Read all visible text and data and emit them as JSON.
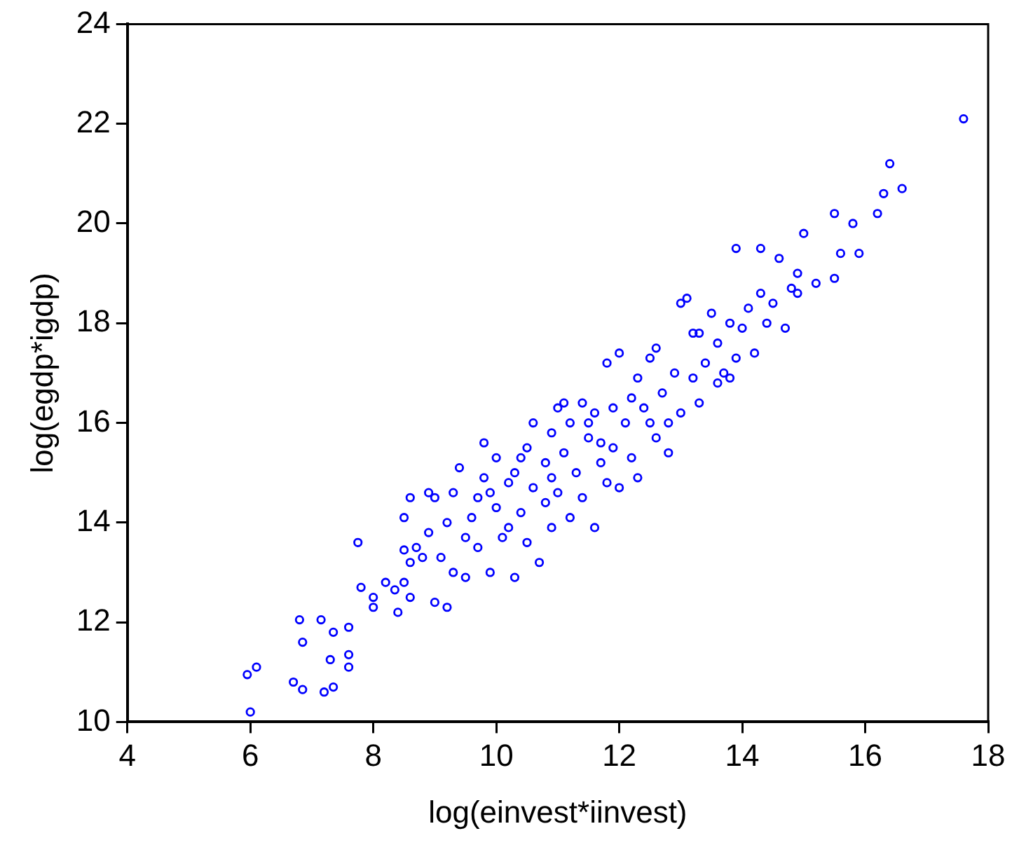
{
  "chart_data": {
    "type": "scatter",
    "xlabel": "log(einvest*iinvest)",
    "ylabel": "log(egdp*igdp)",
    "marker": "circle",
    "grid": false,
    "legend": false,
    "xlim": [
      4,
      18
    ],
    "xticks": [
      4,
      6,
      8,
      10,
      12,
      14,
      16,
      18
    ],
    "ylim": [
      10,
      24
    ],
    "yticks": [
      10,
      12,
      14,
      16,
      18,
      20,
      22,
      24
    ],
    "series": [
      {
        "color": "#0000ff",
        "x": [
          6.0,
          5.95,
          6.1,
          6.7,
          6.85,
          6.8,
          6.85,
          7.15,
          7.2,
          7.3,
          7.35,
          7.35,
          7.6,
          7.6,
          7.6,
          7.8,
          7.75,
          8.0,
          8.0,
          8.4,
          8.35,
          8.5,
          8.5,
          8.6,
          8.6,
          8.5,
          8.6,
          8.7,
          8.8,
          8.9,
          9.0,
          9.0,
          9.1,
          9.2,
          9.2,
          9.3,
          9.3,
          9.4,
          9.5,
          9.5,
          9.6,
          9.7,
          9.8,
          9.8,
          9.9,
          10.0,
          10.0,
          10.1,
          10.2,
          10.3,
          10.3,
          10.4,
          10.5,
          10.5,
          10.6,
          10.6,
          10.7,
          10.8,
          10.8,
          10.9,
          10.9,
          11.0,
          11.0,
          11.1,
          11.2,
          11.2,
          11.3,
          11.4,
          11.4,
          11.5,
          11.6,
          11.6,
          11.7,
          11.8,
          11.9,
          11.9,
          12.0,
          12.0,
          12.1,
          12.2,
          12.3,
          12.3,
          12.4,
          12.5,
          12.6,
          12.7,
          12.8,
          12.9,
          13.0,
          13.0,
          13.1,
          13.2,
          13.2,
          13.3,
          13.4,
          13.5,
          13.6,
          13.6,
          13.7,
          13.8,
          13.9,
          13.9,
          14.0,
          14.1,
          14.2,
          14.3,
          14.3,
          14.4,
          14.6,
          14.7,
          14.8,
          14.9,
          15.0,
          15.2,
          15.5,
          15.6,
          15.8,
          15.9,
          16.2,
          16.4,
          16.6,
          16.3,
          17.6,
          15.5,
          14.5,
          14.9,
          12.5,
          11.5,
          10.2,
          9.7,
          8.9,
          8.2,
          11.8,
          12.6,
          13.3,
          12.8,
          10.9,
          11.7,
          10.4,
          9.9,
          12.2,
          11.1,
          13.8
        ],
        "values": [
          10.2,
          10.95,
          11.1,
          10.8,
          10.65,
          12.05,
          11.6,
          12.05,
          10.6,
          11.25,
          10.7,
          11.8,
          11.35,
          11.1,
          11.9,
          12.7,
          13.6,
          12.5,
          12.3,
          12.2,
          12.65,
          12.8,
          13.45,
          12.5,
          13.2,
          14.1,
          14.5,
          13.5,
          13.3,
          13.8,
          14.5,
          12.4,
          13.3,
          14.0,
          12.3,
          13.0,
          14.6,
          15.1,
          13.7,
          12.9,
          14.1,
          13.5,
          14.9,
          15.6,
          13.0,
          14.3,
          15.3,
          13.7,
          14.8,
          12.9,
          15.0,
          14.2,
          15.5,
          13.6,
          14.7,
          16.0,
          13.2,
          14.4,
          15.2,
          13.9,
          15.8,
          14.6,
          16.3,
          15.4,
          14.1,
          16.0,
          15.0,
          16.4,
          14.5,
          15.7,
          13.9,
          16.2,
          15.2,
          14.8,
          16.3,
          15.5,
          17.4,
          14.7,
          16.0,
          15.3,
          16.9,
          14.9,
          16.3,
          17.3,
          15.7,
          16.6,
          15.4,
          17.0,
          16.2,
          18.4,
          18.5,
          17.8,
          16.9,
          16.4,
          17.2,
          18.2,
          17.6,
          16.8,
          17.0,
          18.0,
          19.5,
          17.3,
          17.9,
          18.3,
          17.4,
          18.6,
          19.5,
          18.0,
          19.3,
          17.9,
          18.7,
          19.0,
          19.8,
          18.8,
          20.2,
          19.4,
          20.0,
          19.4,
          20.2,
          21.2,
          20.7,
          20.6,
          22.1,
          18.9,
          18.4,
          18.6,
          16.0,
          16.0,
          13.9,
          14.5,
          14.6,
          12.8,
          17.2,
          17.5,
          17.8,
          16.0,
          14.9,
          15.6,
          15.3,
          14.6,
          16.5,
          16.4,
          16.9
        ]
      }
    ]
  }
}
